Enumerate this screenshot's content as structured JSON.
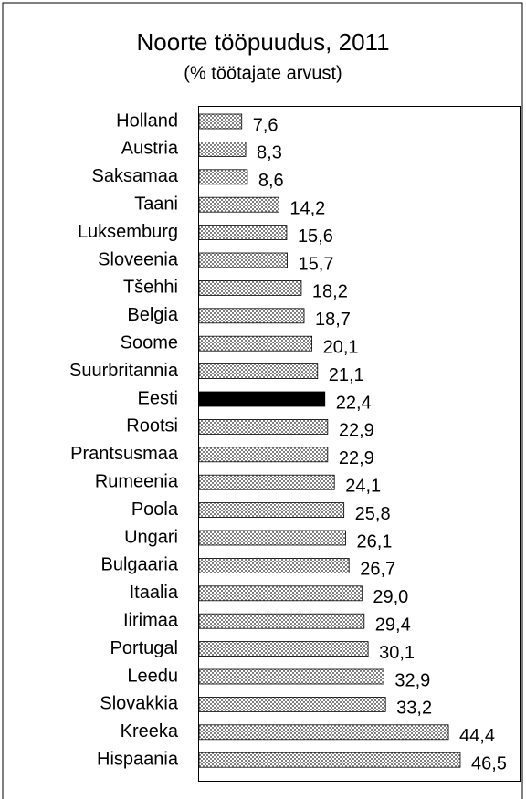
{
  "chart_data": {
    "type": "barh",
    "title": "Noorte tööpuudus, 2011",
    "subtitle": "(% töötajate arvust)",
    "categories": [
      "Holland",
      "Austria",
      "Saksamaa",
      "Taani",
      "Luksemburg",
      "Sloveenia",
      "Tšehhi",
      "Belgia",
      "Soome",
      "Suurbritannia",
      "Eesti",
      "Rootsi",
      "Prantsusmaa",
      "Rumeenia",
      "Poola",
      "Ungari",
      "Bulgaaria",
      "Itaalia",
      "Iirimaa",
      "Portugal",
      "Leedu",
      "Slovakkia",
      "Kreeka",
      "Hispaania"
    ],
    "values": [
      7.6,
      8.3,
      8.6,
      14.2,
      15.6,
      15.7,
      18.2,
      18.7,
      20.1,
      21.1,
      22.4,
      22.9,
      22.9,
      24.1,
      25.8,
      26.1,
      26.7,
      29.0,
      29.4,
      30.1,
      32.9,
      33.2,
      44.4,
      46.5
    ],
    "value_labels": [
      "7,6",
      "8,3",
      "8,6",
      "14,2",
      "15,6",
      "15,7",
      "18,2",
      "18,7",
      "20,1",
      "21,1",
      "22,4",
      "22,9",
      "22,9",
      "24,1",
      "25,8",
      "26,1",
      "26,7",
      "29,0",
      "29,4",
      "30,1",
      "32,9",
      "33,2",
      "44,4",
      "46,5"
    ],
    "colors": [
      "#808080",
      "#808080",
      "#808080",
      "#808080",
      "#808080",
      "#808080",
      "#808080",
      "#808080",
      "#808080",
      "#808080",
      "#000000",
      "#808080",
      "#808080",
      "#808080",
      "#808080",
      "#808080",
      "#808080",
      "#808080",
      "#808080",
      "#808080",
      "#808080",
      "#808080",
      "#808080",
      "#808080"
    ]
  }
}
